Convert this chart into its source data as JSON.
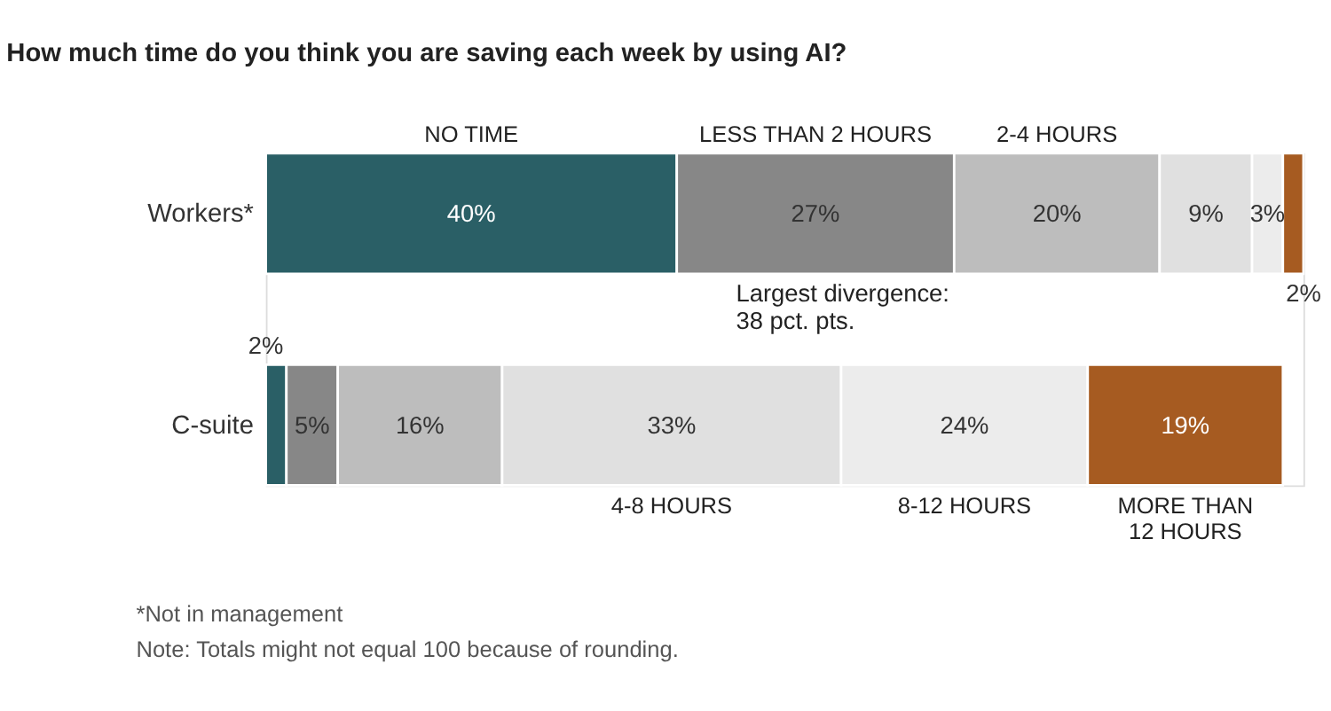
{
  "chart_data": {
    "type": "bar",
    "orientation": "horizontal",
    "stacked": true,
    "title": "How much time do you think you are saving each week by using AI?",
    "categories": [
      "Workers*",
      "C-suite"
    ],
    "series": [
      {
        "name": "NO TIME",
        "color": "#2a5f66",
        "values": [
          40,
          2
        ],
        "value_labels": [
          "40%",
          "2%"
        ]
      },
      {
        "name": "LESS THAN 2 HOURS",
        "color": "#878787",
        "values": [
          27,
          5
        ],
        "value_labels": [
          "27%",
          "5%"
        ]
      },
      {
        "name": "2-4 HOURS",
        "color": "#bdbdbd",
        "values": [
          20,
          16
        ],
        "value_labels": [
          "20%",
          "16%"
        ]
      },
      {
        "name": "4-8 HOURS",
        "color": "#e0e0e0",
        "values": [
          9,
          33
        ],
        "value_labels": [
          "9%",
          "33%"
        ]
      },
      {
        "name": "8-12 HOURS",
        "color": "#ececec",
        "values": [
          3,
          24
        ],
        "value_labels": [
          "3%",
          "24%"
        ]
      },
      {
        "name": "MORE THAN\n12 HOURS",
        "color": "#a65b21",
        "values": [
          2,
          19
        ],
        "value_labels": [
          "2%",
          "19%"
        ]
      }
    ],
    "annotations": [
      "Largest divergence:\n38 pct. pts.",
      "*Not in management",
      "Note: Totals might not equal 100 because of rounding."
    ],
    "legend": false,
    "grid": false
  }
}
